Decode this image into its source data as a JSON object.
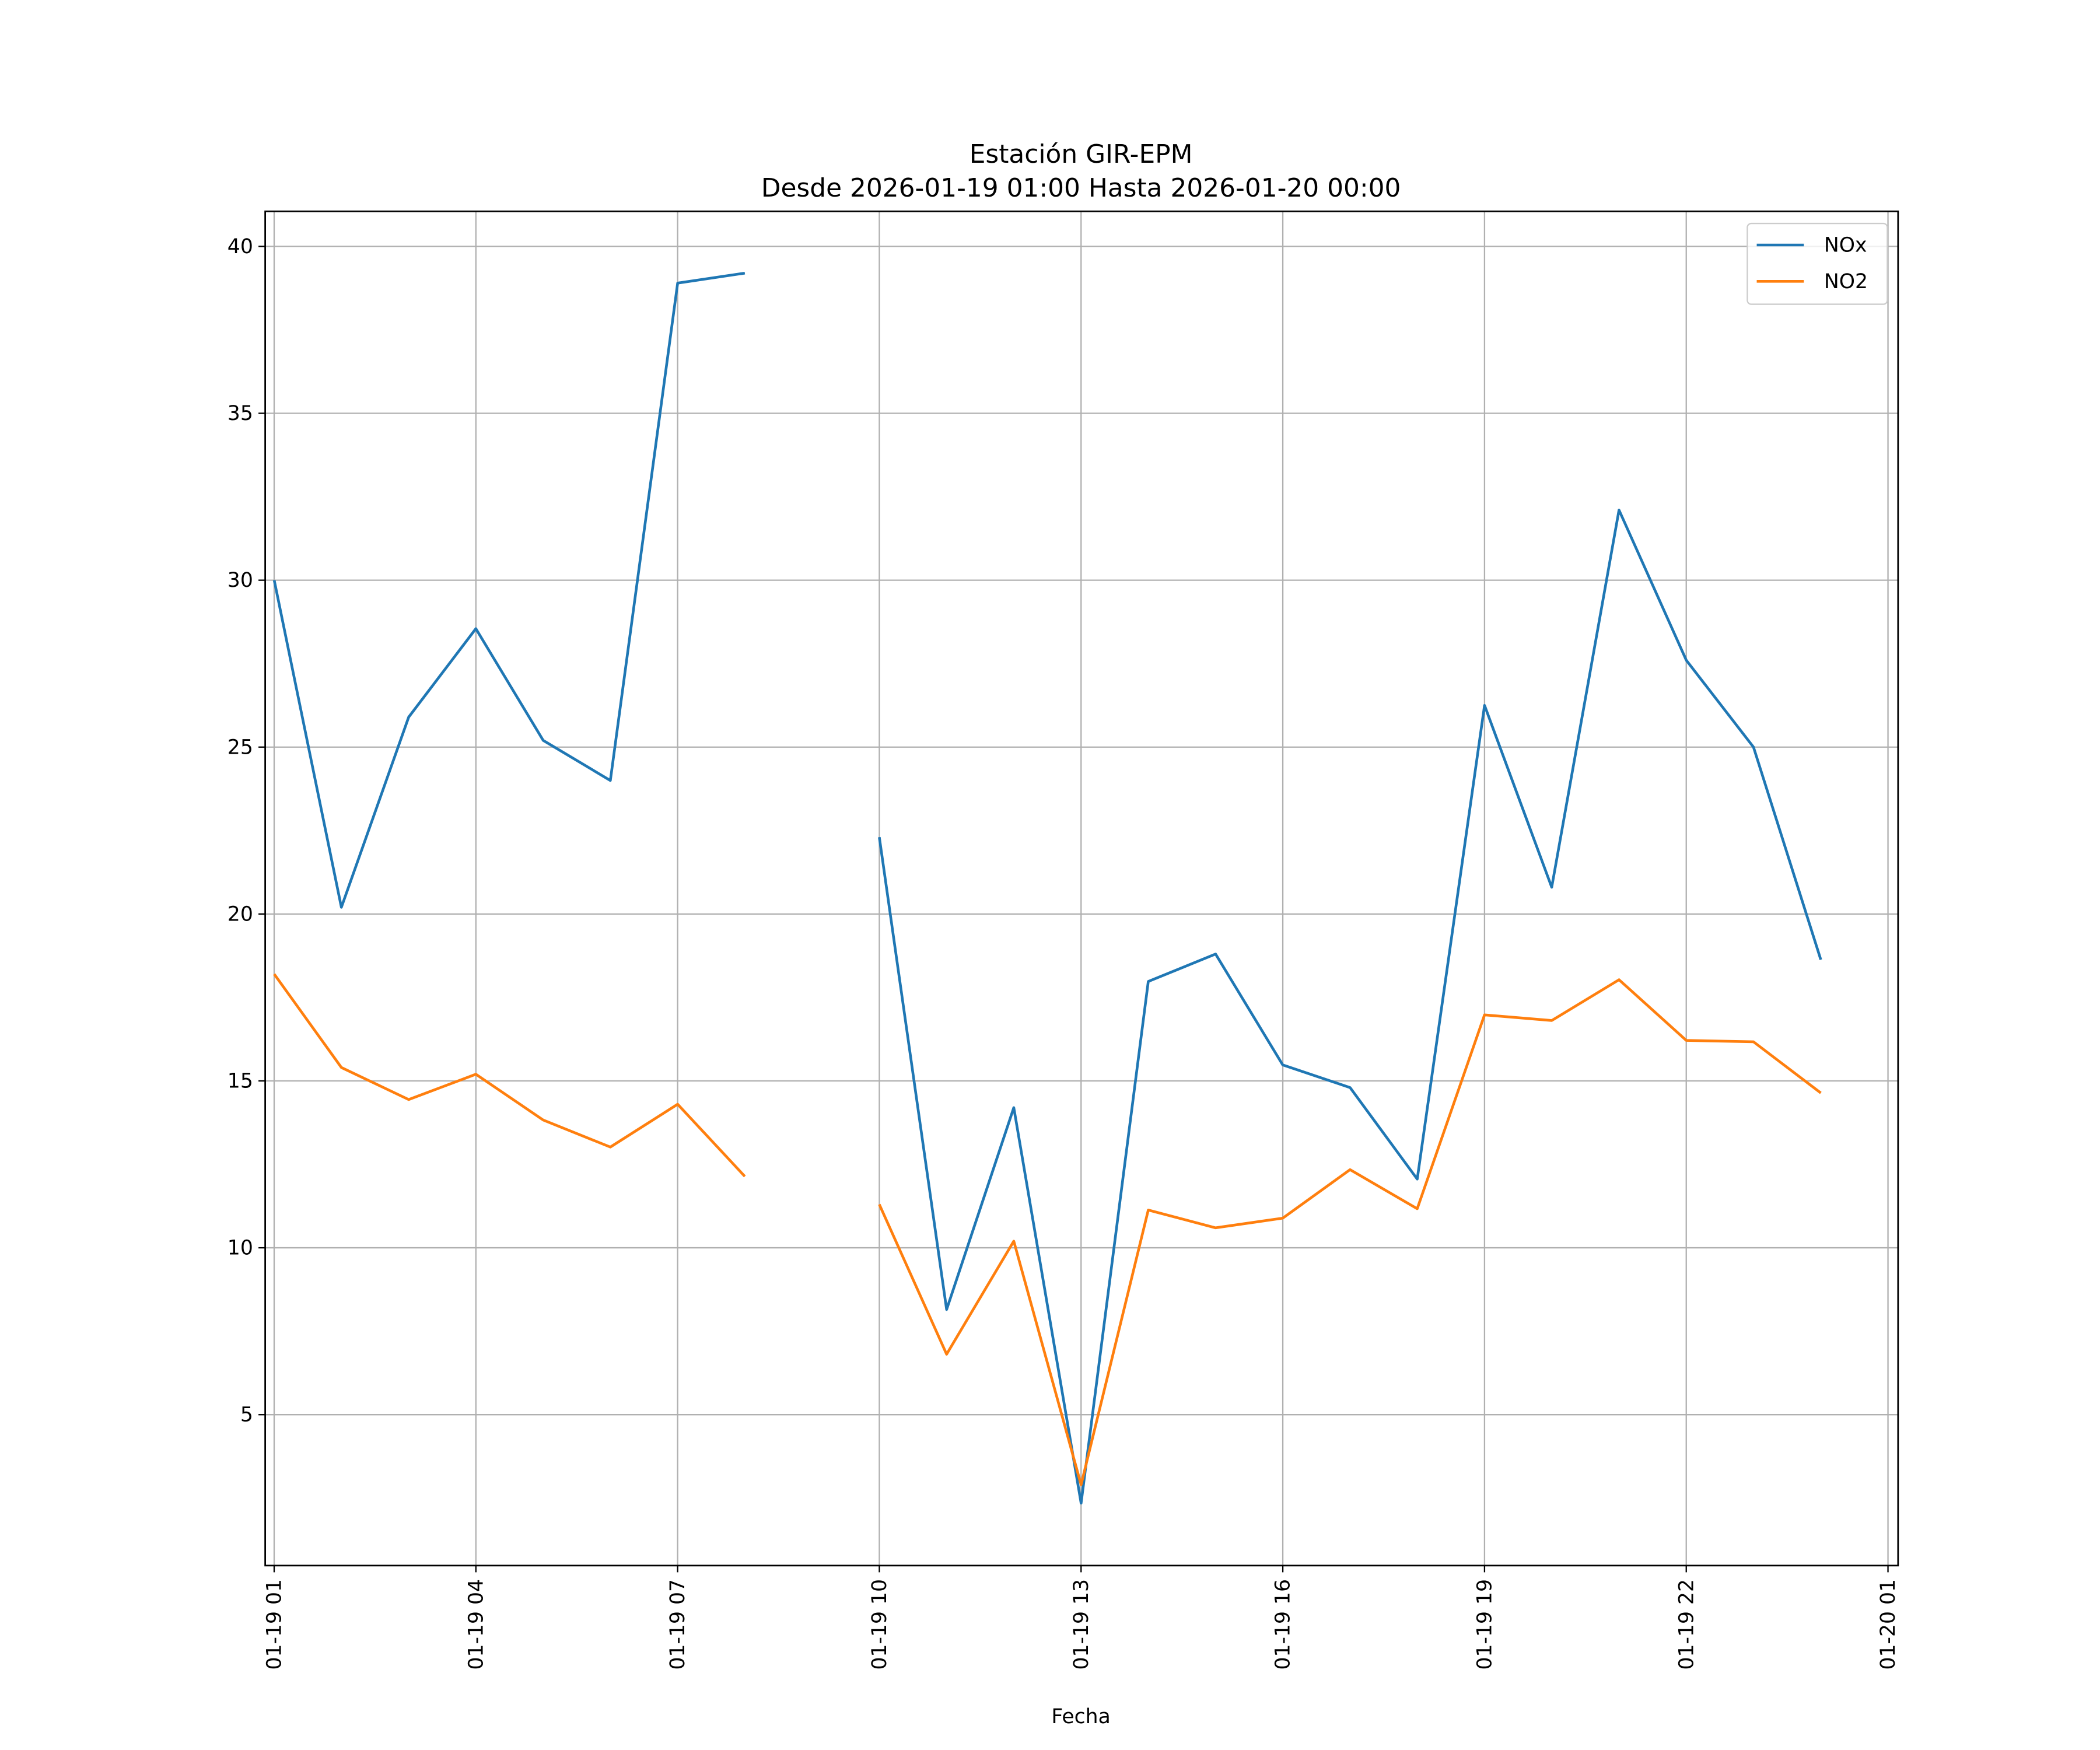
{
  "chart_data": {
    "type": "line",
    "title": "Estación GIR-EPM",
    "subtitle": "Desde 2026-01-19 01:00 Hasta 2026-01-20 00:00",
    "xlabel": "Fecha",
    "ylabel": "",
    "x": [
      "2026-01-19 01:00",
      "2026-01-19 02:00",
      "2026-01-19 03:00",
      "2026-01-19 04:00",
      "2026-01-19 05:00",
      "2026-01-19 06:00",
      "2026-01-19 07:00",
      "2026-01-19 08:00",
      "2026-01-19 09:00",
      "2026-01-19 10:00",
      "2026-01-19 11:00",
      "2026-01-19 12:00",
      "2026-01-19 13:00",
      "2026-01-19 14:00",
      "2026-01-19 15:00",
      "2026-01-19 16:00",
      "2026-01-19 17:00",
      "2026-01-19 18:00",
      "2026-01-19 19:00",
      "2026-01-19 20:00",
      "2026-01-19 21:00",
      "2026-01-19 22:00",
      "2026-01-19 23:00",
      "2026-01-20 00:00"
    ],
    "series": [
      {
        "name": "NOx",
        "color": "#1f77b4",
        "values": [
          30.0,
          20.2,
          25.9,
          28.55,
          25.2,
          24.0,
          38.9,
          39.2,
          null,
          22.3,
          8.15,
          14.2,
          2.35,
          17.98,
          18.8,
          15.48,
          14.8,
          12.06,
          26.25,
          20.8,
          32.1,
          27.6,
          25.0,
          18.63
        ]
      },
      {
        "name": "NO2",
        "color": "#ff7f0e",
        "values": [
          18.2,
          15.4,
          14.44,
          15.2,
          13.83,
          13.02,
          14.3,
          12.14,
          null,
          11.3,
          6.81,
          10.2,
          2.9,
          11.13,
          10.6,
          10.89,
          12.34,
          11.17,
          16.98,
          16.81,
          18.03,
          16.21,
          16.17,
          14.64
        ]
      }
    ],
    "xlim": [
      "2026-01-19 00:52",
      "2026-01-20 01:09"
    ],
    "ylim": [
      0.48,
      41.05
    ],
    "xticks": [
      "01-19 01",
      "01-19 04",
      "01-19 07",
      "01-19 10",
      "01-19 13",
      "01-19 16",
      "01-19 19",
      "01-19 22",
      "01-20 01"
    ],
    "yticks": [
      "5",
      "10",
      "15",
      "20",
      "25",
      "30",
      "35",
      "40"
    ],
    "grid": true,
    "legend": "top-right"
  }
}
